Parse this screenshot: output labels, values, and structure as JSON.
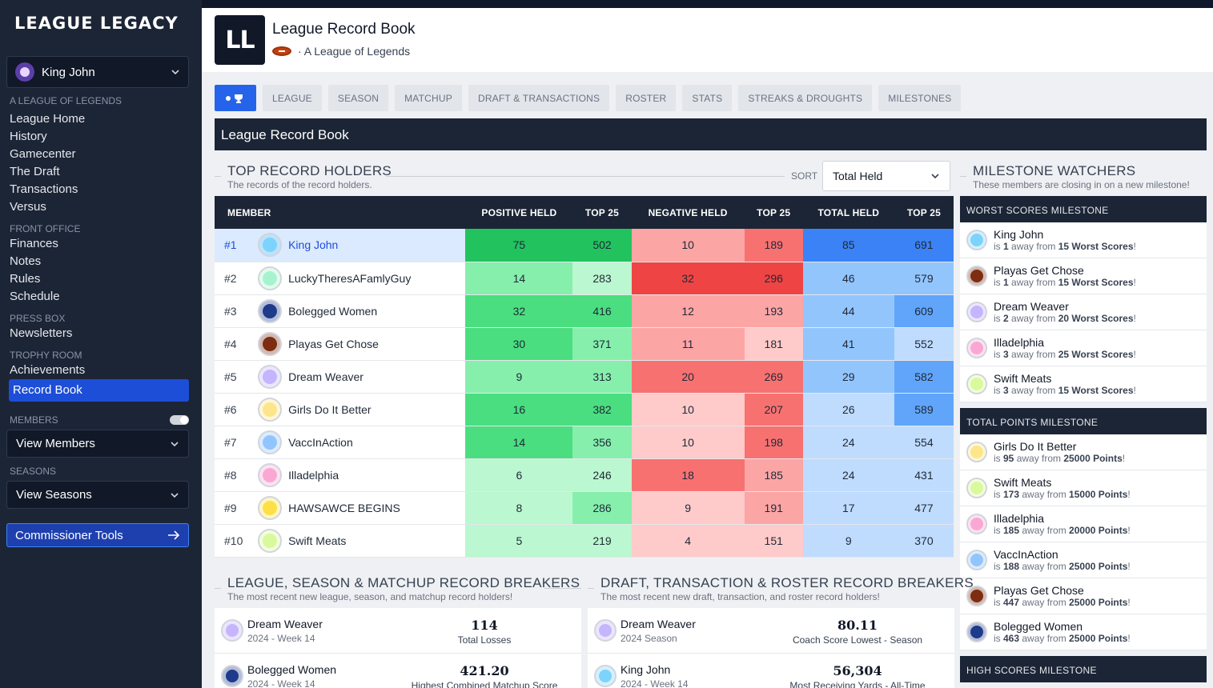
{
  "sidebar": {
    "brand": "LEAGUE LEGACY",
    "user": "King John",
    "sections": [
      {
        "title": "A LEAGUE OF LEGENDS",
        "items": [
          "League Home",
          "History",
          "Gamecenter",
          "The Draft",
          "Transactions",
          "Versus"
        ]
      },
      {
        "title": "FRONT OFFICE",
        "items": [
          "Finances",
          "Notes",
          "Rules",
          "Schedule"
        ]
      },
      {
        "title": "PRESS BOX",
        "items": [
          "Newsletters"
        ]
      },
      {
        "title": "TROPHY ROOM",
        "items": [
          "Achievements",
          "Record Book"
        ]
      }
    ],
    "members_label": "MEMBERS",
    "view_members": "View Members",
    "seasons_label": "SEASONS",
    "view_seasons": "View Seasons",
    "commissioner": "Commissioner Tools"
  },
  "header": {
    "logo": "LL",
    "title": "League Record Book",
    "subtitle": "· A League of Legends"
  },
  "tabs": [
    "LEAGUE",
    "SEASON",
    "MATCHUP",
    "DRAFT & TRANSACTIONS",
    "ROSTER",
    "STATS",
    "STREAKS & DROUGHTS",
    "MILESTONES"
  ],
  "record_book_title": "League Record Book",
  "top_holders": {
    "title": "TOP RECORD HOLDERS",
    "subtitle": "The records of the record holders.",
    "sort_label": "SORT",
    "sort_value": "Total Held",
    "columns": [
      "MEMBER",
      "POSITIVE HELD",
      "TOP 25",
      "NEGATIVE HELD",
      "TOP 25",
      "TOTAL HELD",
      "TOP 25"
    ],
    "rows": [
      {
        "rank": "#1",
        "name": "King John",
        "pos": "75",
        "pos25": "502",
        "neg": "10",
        "neg25": "189",
        "tot": "85",
        "tot25": "691",
        "av": "#7dd3fc"
      },
      {
        "rank": "#2",
        "name": "LuckyTheresAFamlyGuy",
        "pos": "14",
        "pos25": "283",
        "neg": "32",
        "neg25": "296",
        "tot": "46",
        "tot25": "579",
        "av": "#a7f3d0"
      },
      {
        "rank": "#3",
        "name": "Bolegged Women",
        "pos": "32",
        "pos25": "416",
        "neg": "12",
        "neg25": "193",
        "tot": "44",
        "tot25": "609",
        "av": "#1e3a8a"
      },
      {
        "rank": "#4",
        "name": "Playas Get Chose",
        "pos": "30",
        "pos25": "371",
        "neg": "11",
        "neg25": "181",
        "tot": "41",
        "tot25": "552",
        "av": "#7c2d12"
      },
      {
        "rank": "#5",
        "name": "Dream Weaver",
        "pos": "9",
        "pos25": "313",
        "neg": "20",
        "neg25": "269",
        "tot": "29",
        "tot25": "582",
        "av": "#c4b5fd"
      },
      {
        "rank": "#6",
        "name": "Girls Do It Better",
        "pos": "16",
        "pos25": "382",
        "neg": "10",
        "neg25": "207",
        "tot": "26",
        "tot25": "589",
        "av": "#fde68a"
      },
      {
        "rank": "#7",
        "name": "VaccInAction",
        "pos": "14",
        "pos25": "356",
        "neg": "10",
        "neg25": "198",
        "tot": "24",
        "tot25": "554",
        "av": "#93c5fd"
      },
      {
        "rank": "#8",
        "name": "Illadelphia",
        "pos": "6",
        "pos25": "246",
        "neg": "18",
        "neg25": "185",
        "tot": "24",
        "tot25": "431",
        "av": "#f9a8d4"
      },
      {
        "rank": "#9",
        "name": "HAWSAWCE BEGINS",
        "pos": "8",
        "pos25": "286",
        "neg": "9",
        "neg25": "191",
        "tot": "17",
        "tot25": "477",
        "av": "#fde047"
      },
      {
        "rank": "#10",
        "name": "Swift Meats",
        "pos": "5",
        "pos25": "219",
        "neg": "4",
        "neg25": "151",
        "tot": "9",
        "tot25": "370",
        "av": "#d9f99d"
      }
    ],
    "cell_colors": {
      "pos": [
        "#22c35e",
        "#86efac",
        "#4ade80",
        "#4ade80",
        "#86efac",
        "#4ade80",
        "#4ade80",
        "#bbf7d0",
        "#bbf7d0",
        "#bbf7d0"
      ],
      "pos25": [
        "#22c35e",
        "#bbf7d0",
        "#4ade80",
        "#86efac",
        "#86efac",
        "#4ade80",
        "#86efac",
        "#bbf7d0",
        "#86efac",
        "#bbf7d0"
      ],
      "neg": [
        "#fca5a5",
        "#ef4444",
        "#fca5a5",
        "#fca5a5",
        "#f87171",
        "#fecaca",
        "#fecaca",
        "#f87171",
        "#fecaca",
        "#fecaca"
      ],
      "neg25": [
        "#f87171",
        "#ef4444",
        "#fca5a5",
        "#fecaca",
        "#f87171",
        "#f87171",
        "#f87171",
        "#fca5a5",
        "#fca5a5",
        "#fecaca"
      ],
      "tot": [
        "#3b82f6",
        "#93c5fd",
        "#93c5fd",
        "#93c5fd",
        "#93c5fd",
        "#bfdbfe",
        "#bfdbfe",
        "#bfdbfe",
        "#bfdbfe",
        "#bfdbfe"
      ],
      "tot25": [
        "#3b82f6",
        "#93c5fd",
        "#60a5fa",
        "#bfdbfe",
        "#60a5fa",
        "#60a5fa",
        "#bfdbfe",
        "#bfdbfe",
        "#bfdbfe",
        "#bfdbfe"
      ]
    }
  },
  "milestones": {
    "title": "MILESTONE WATCHERS",
    "subtitle": "These members are closing in on a new milestone!",
    "groups": [
      {
        "head": "WORST SCORES MILESTONE",
        "items": [
          {
            "name": "King John",
            "pre": "is ",
            "num": "1",
            "mid": " away from ",
            "goal": "15 Worst Scores",
            "post": "!",
            "av": "#7dd3fc"
          },
          {
            "name": "Playas Get Chose",
            "pre": "is ",
            "num": "1",
            "mid": " away from ",
            "goal": "15 Worst Scores",
            "post": "!",
            "av": "#7c2d12"
          },
          {
            "name": "Dream Weaver",
            "pre": "is ",
            "num": "2",
            "mid": " away from ",
            "goal": "20 Worst Scores",
            "post": "!",
            "av": "#c4b5fd"
          },
          {
            "name": "Illadelphia",
            "pre": "is ",
            "num": "3",
            "mid": " away from ",
            "goal": "25 Worst Scores",
            "post": "!",
            "av": "#f9a8d4"
          },
          {
            "name": "Swift Meats",
            "pre": "is ",
            "num": "3",
            "mid": " away from ",
            "goal": "15 Worst Scores",
            "post": "!",
            "av": "#d9f99d"
          }
        ]
      },
      {
        "head": "TOTAL POINTS MILESTONE",
        "items": [
          {
            "name": "Girls Do It Better",
            "pre": "is ",
            "num": "95",
            "mid": " away from ",
            "goal": "25000 Points",
            "post": "!",
            "av": "#fde68a"
          },
          {
            "name": "Swift Meats",
            "pre": "is ",
            "num": "173",
            "mid": " away from ",
            "goal": "15000 Points",
            "post": "!",
            "av": "#d9f99d"
          },
          {
            "name": "Illadelphia",
            "pre": "is ",
            "num": "185",
            "mid": " away from ",
            "goal": "20000 Points",
            "post": "!",
            "av": "#f9a8d4"
          },
          {
            "name": "VaccInAction",
            "pre": "is ",
            "num": "188",
            "mid": " away from ",
            "goal": "25000 Points",
            "post": "!",
            "av": "#93c5fd"
          },
          {
            "name": "Playas Get Chose",
            "pre": "is ",
            "num": "447",
            "mid": " away from ",
            "goal": "25000 Points",
            "post": "!",
            "av": "#7c2d12"
          },
          {
            "name": "Bolegged Women",
            "pre": "is ",
            "num": "463",
            "mid": " away from ",
            "goal": "25000 Points",
            "post": "!",
            "av": "#1e3a8a"
          }
        ]
      },
      {
        "head": "HIGH SCORES MILESTONE",
        "items": []
      }
    ]
  },
  "breakers_left": {
    "title": "LEAGUE, SEASON & MATCHUP RECORD BREAKERS",
    "subtitle": "The most recent new league, season, and matchup record holders!",
    "items": [
      {
        "name": "Dream Weaver",
        "sub": "2024 - Week 14",
        "value": "114",
        "label": "Total Losses",
        "av": "#c4b5fd"
      },
      {
        "name": "Bolegged Women",
        "sub": "2024 - Week 14",
        "value": "421.20",
        "label": "Highest Combined Matchup Score",
        "av": "#1e3a8a"
      }
    ]
  },
  "breakers_right": {
    "title": "DRAFT, TRANSACTION & ROSTER RECORD BREAKERS",
    "subtitle": "The most recent new draft, transaction, and roster record holders!",
    "items": [
      {
        "name": "Dream Weaver",
        "sub": "2024 Season",
        "value": "80.11",
        "label": "Coach Score Lowest - Season",
        "av": "#c4b5fd"
      },
      {
        "name": "King John",
        "sub": "2024 - Week 14",
        "value": "56,304",
        "label": "Most Receiving Yards - All-Time",
        "av": "#7dd3fc"
      }
    ]
  }
}
